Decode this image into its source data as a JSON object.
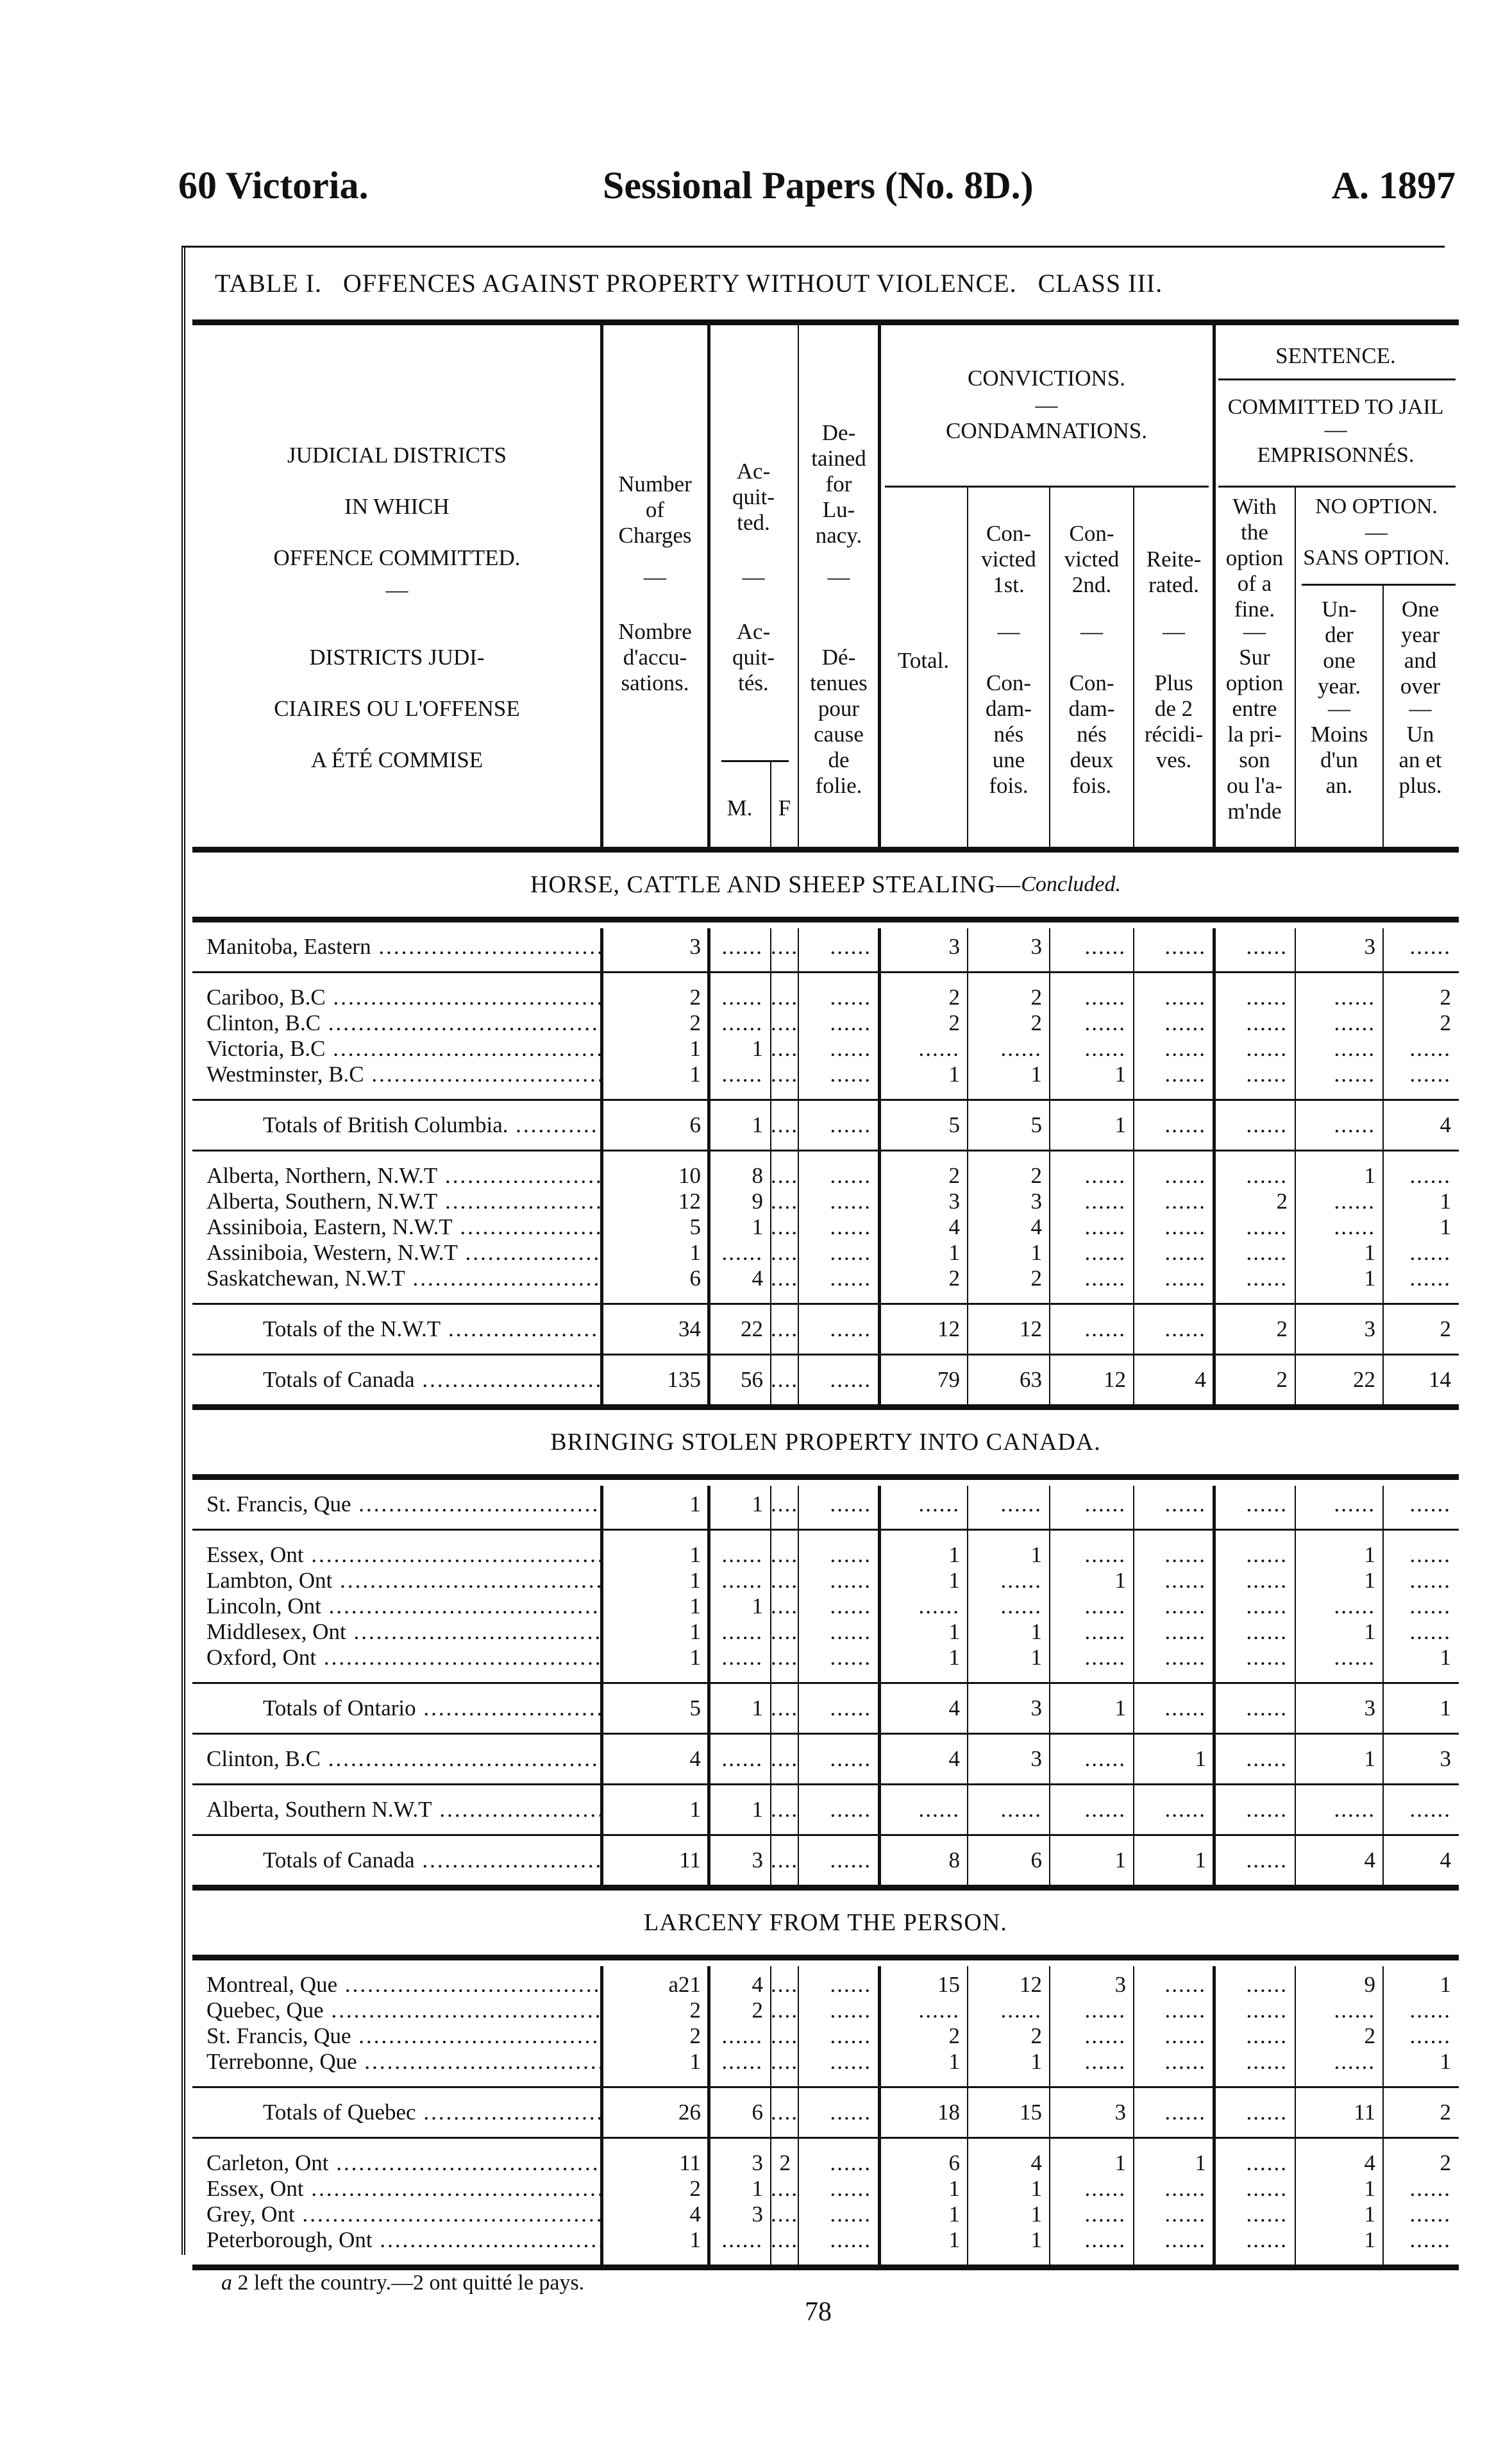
{
  "page_header": {
    "left": "60 Victoria.",
    "center": "Sessional Papers (No. 8D.)",
    "right": "A. 1897"
  },
  "table_title": "TABLE I.   OFFENCES AGAINST PROPERTY WITHOUT VIOLENCE.   CLASS III.",
  "columns": {
    "district_en": "JUDICIAL DISTRICTS\nIN WHICH\nOFFENCE COMMITTED.",
    "district_fr": "DISTRICTS JUDI-\nCIAIRES OU L'OFFENSE\nA ÉTÉ COMMISE",
    "number_en": "Number\nof\nCharges",
    "number_fr": "Nombre\nd'accu-\nsations.",
    "acquitted_en": "Ac-\nquit-\nted.",
    "acquitted_fr": "Ac-\nquit-\ntés.",
    "male": "M.",
    "female": "F",
    "lunacy_en": "De-\ntained\nfor\nLu-\nnacy.",
    "lunacy_fr": "Dé-\ntenues\npour\ncause\nde\nfolie.",
    "convictions_en": "CONVICTIONS.",
    "convictions_fr": "CONDAMNATIONS.",
    "total": "Total.",
    "conv1_en": "Con-\nvicted\n1st.",
    "conv1_fr": "Con-\ndam-\nnés\nune\nfois.",
    "conv2_en": "Con-\nvicted\n2nd.",
    "conv2_fr": "Con-\ndam-\nnés\ndeux\nfois.",
    "reit_en": "Reite-\nrated.",
    "reit_fr": "Plus\nde 2\nrécidi-\nves.",
    "sentence": "SENTENCE.",
    "committed_en": "COMMITTED TO JAIL",
    "committed_fr": "EMPRISONNÉS.",
    "option_en": "With\nthe\noption\nof a\nfine.",
    "option_fr": "Sur\noption\nentre\nla pri-\nson\nou l'a-\nm'nde",
    "nooption_en": "NO OPTION.",
    "nooption_fr": "SANS OPTION.",
    "under_en": "Un-\nder\none\nyear.",
    "under_fr": "Moins\nd'un\nan.",
    "over_en": "One\nyear\nand\nover",
    "over_fr": "Un\nan et\nplus.",
    "dash": "—"
  },
  "sections": [
    {
      "title": "HORSE, CATTLE AND SHEEP STEALING—",
      "title_suffix": "Concluded.",
      "groups": [
        {
          "rows": [
            [
              "Manitoba, Eastern",
              "3",
              "",
              "",
              "",
              "3",
              "3",
              "",
              "",
              "",
              "3",
              ""
            ]
          ]
        },
        {
          "rows": [
            [
              "Cariboo, B.C",
              "2",
              "",
              "",
              "",
              "2",
              "2",
              "",
              "",
              "",
              "",
              "2"
            ],
            [
              "Clinton, B.C",
              "2",
              "",
              "",
              "",
              "2",
              "2",
              "",
              "",
              "",
              "",
              "2"
            ],
            [
              "Victoria, B.C",
              "1",
              "1",
              "",
              "",
              "",
              "",
              "",
              "",
              "",
              "",
              ""
            ],
            [
              "Westminster, B.C",
              "1",
              "",
              "",
              "",
              "1",
              "1",
              "1",
              "",
              "",
              "",
              ""
            ]
          ]
        },
        {
          "total": true,
          "rows": [
            [
              "Totals of British Columbia.",
              "6",
              "1",
              "",
              "",
              "5",
              "5",
              "1",
              "",
              "",
              "",
              "4"
            ]
          ]
        },
        {
          "rows": [
            [
              "Alberta, Northern, N.W.T",
              "10",
              "8",
              "",
              "",
              "2",
              "2",
              "",
              "",
              "",
              "1",
              ""
            ],
            [
              "Alberta, Southern, N.W.T",
              "12",
              "9",
              "",
              "",
              "3",
              "3",
              "",
              "",
              "2",
              "",
              "1"
            ],
            [
              "Assiniboia, Eastern, N.W.T",
              "5",
              "1",
              "",
              "",
              "4",
              "4",
              "",
              "",
              "",
              "",
              "1"
            ],
            [
              "Assiniboia, Western, N.W.T",
              "1",
              "",
              "",
              "",
              "1",
              "1",
              "",
              "",
              "",
              "1",
              ""
            ],
            [
              "Saskatchewan, N.W.T",
              "6",
              "4",
              "",
              "",
              "2",
              "2",
              "",
              "",
              "",
              "1",
              ""
            ]
          ]
        },
        {
          "total": true,
          "rows": [
            [
              "Totals of the N.W.T",
              "34",
              "22",
              "",
              "",
              "12",
              "12",
              "",
              "",
              "2",
              "3",
              "2"
            ]
          ]
        },
        {
          "total": true,
          "rows": [
            [
              "Totals of Canada",
              "135",
              "56",
              "",
              "",
              "79",
              "63",
              "12",
              "4",
              "2",
              "22",
              "14"
            ]
          ]
        }
      ]
    },
    {
      "title": "BRINGING STOLEN PROPERTY INTO CANADA.",
      "groups": [
        {
          "rows": [
            [
              "St. Francis, Que",
              "1",
              "1",
              "",
              "",
              "",
              "",
              "",
              "",
              "",
              "",
              ""
            ]
          ]
        },
        {
          "rows": [
            [
              "Essex, Ont",
              "1",
              "",
              "",
              "",
              "1",
              "1",
              "",
              "",
              "",
              "1",
              ""
            ],
            [
              "Lambton, Ont",
              "1",
              "",
              "",
              "",
              "1",
              "",
              "1",
              "",
              "",
              "1",
              ""
            ],
            [
              "Lincoln, Ont",
              "1",
              "1",
              "",
              "",
              "",
              "",
              "",
              "",
              "",
              "",
              ""
            ],
            [
              "Middlesex, Ont",
              "1",
              "",
              "",
              "",
              "1",
              "1",
              "",
              "",
              "",
              "1",
              ""
            ],
            [
              "Oxford, Ont",
              "1",
              "",
              "",
              "",
              "1",
              "1",
              "",
              "",
              "",
              "",
              "1"
            ]
          ]
        },
        {
          "total": true,
          "rows": [
            [
              "Totals of Ontario",
              "5",
              "1",
              "",
              "",
              "4",
              "3",
              "1",
              "",
              "",
              "3",
              "1"
            ]
          ]
        },
        {
          "rows": [
            [
              "Clinton, B.C",
              "4",
              "",
              "",
              "",
              "4",
              "3",
              "",
              "1",
              "",
              "1",
              "3"
            ]
          ]
        },
        {
          "rows": [
            [
              "Alberta, Southern N.W.T",
              "1",
              "1",
              "",
              "",
              "",
              "",
              "",
              "",
              "",
              "",
              ""
            ]
          ]
        },
        {
          "total": true,
          "rows": [
            [
              "Totals of Canada",
              "11",
              "3",
              "",
              "",
              "8",
              "6",
              "1",
              "1",
              "",
              "4",
              "4"
            ]
          ]
        }
      ]
    },
    {
      "title": "LARCENY FROM THE PERSON.",
      "groups": [
        {
          "rows": [
            [
              "Montreal, Que",
              "a21",
              "4",
              "",
              "",
              "15",
              "12",
              "3",
              "",
              "",
              "9",
              "1"
            ],
            [
              "Quebec, Que",
              "2",
              "2",
              "",
              "",
              "",
              "",
              "",
              "",
              "",
              "",
              ""
            ],
            [
              "St. Francis, Que",
              "2",
              "",
              "",
              "",
              "2",
              "2",
              "",
              "",
              "",
              "2",
              ""
            ],
            [
              "Terrebonne, Que",
              "1",
              "",
              "",
              "",
              "1",
              "1",
              "",
              "",
              "",
              "",
              "1"
            ]
          ]
        },
        {
          "total": true,
          "rows": [
            [
              "Totals of Quebec",
              "26",
              "6",
              "",
              "",
              "18",
              "15",
              "3",
              "",
              "",
              "11",
              "2"
            ]
          ]
        },
        {
          "rows": [
            [
              "Carleton, Ont",
              "11",
              "3",
              "2",
              "",
              "6",
              "4",
              "1",
              "1",
              "",
              "4",
              "2"
            ],
            [
              "Essex, Ont",
              "2",
              "1",
              "",
              "",
              "1",
              "1",
              "",
              "",
              "",
              "1",
              ""
            ],
            [
              "Grey, Ont",
              "4",
              "3",
              "",
              "",
              "1",
              "1",
              "",
              "",
              "",
              "1",
              ""
            ],
            [
              "Peterborough, Ont",
              "1",
              "",
              "",
              "",
              "1",
              "1",
              "",
              "",
              "",
              "1",
              ""
            ]
          ]
        }
      ]
    }
  ],
  "footnote": {
    "marker": "a",
    "text": " 2 left the country.—2 ont quitté le pays."
  },
  "page_number": "78"
}
